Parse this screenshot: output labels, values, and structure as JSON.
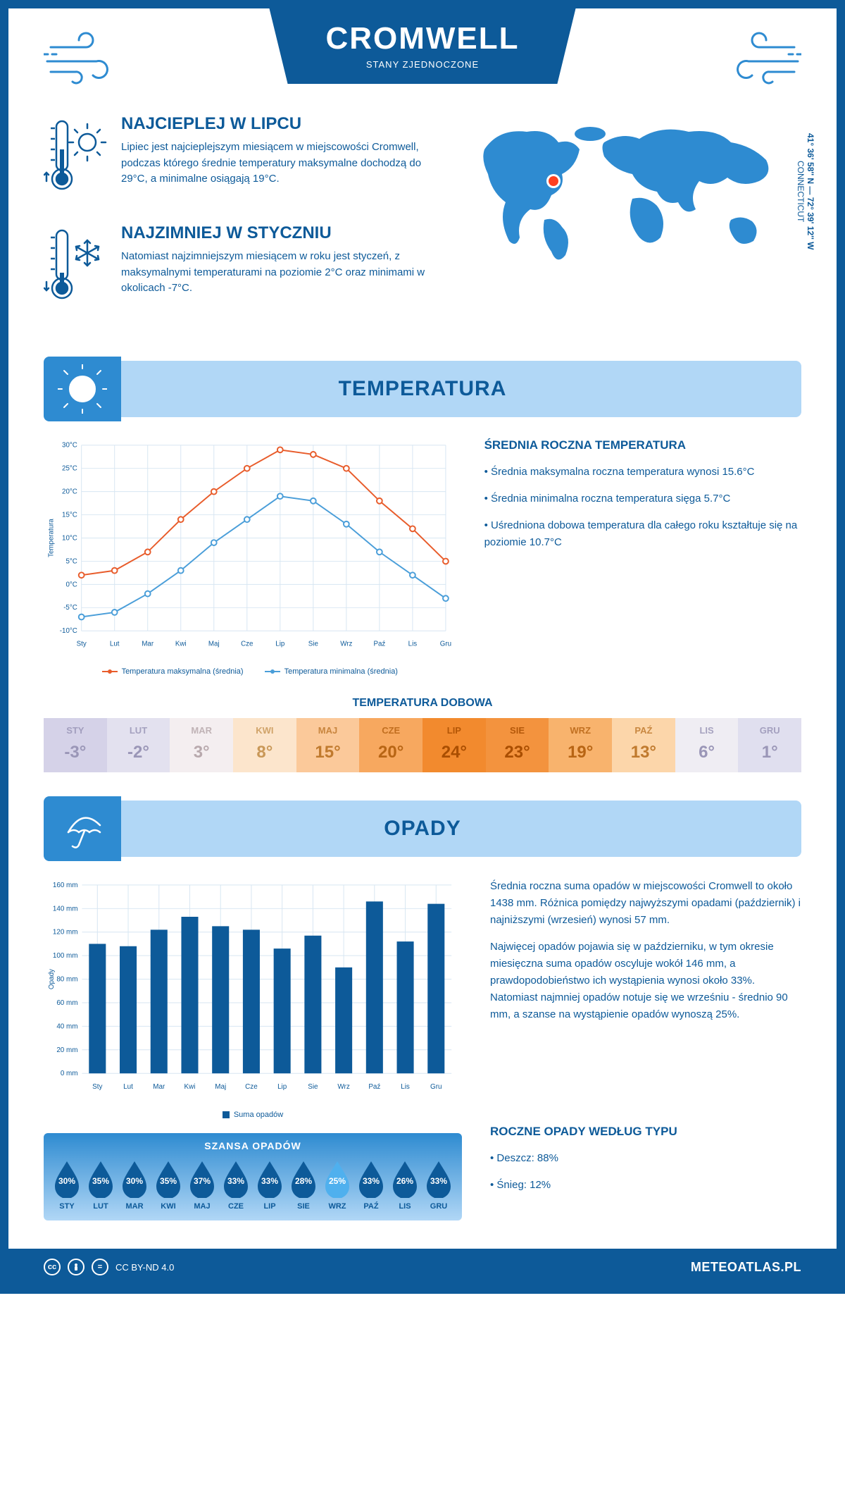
{
  "header": {
    "city": "CROMWELL",
    "country": "STANY ZJEDNOCZONE"
  },
  "coords": {
    "lat": "41° 36' 58'' N",
    "lon": "72° 39' 12'' W",
    "region": "CONNECTICUT"
  },
  "colors": {
    "primary": "#0d5a99",
    "light_blue": "#b1d7f6",
    "mid_blue": "#2e8bd1",
    "orange_line": "#e85c2b",
    "blue_line": "#4a9ed9",
    "grid": "#d7e6f2"
  },
  "warm": {
    "title": "NAJCIEPLEJ W LIPCU",
    "text": "Lipiec jest najcieplejszym miesiącem w miejscowości Cromwell, podczas którego średnie temperatury maksymalne dochodzą do 29°C, a minimalne osiągają 19°C."
  },
  "cold": {
    "title": "NAJZIMNIEJ W STYCZNIU",
    "text": "Natomiast najzimniejszym miesiącem w roku jest styczeń, z maksymalnymi temperaturami na poziomie 2°C oraz minimami w okolicach -7°C."
  },
  "temp_section": {
    "title": "TEMPERATURA",
    "summary_title": "ŚREDNIA ROCZNA TEMPERATURA",
    "bullets": [
      "• Średnia maksymalna roczna temperatura wynosi 15.6°C",
      "• Średnia minimalna roczna temperatura sięga 5.7°C",
      "• Uśredniona dobowa temperatura dla całego roku kształtuje się na poziomie 10.7°C"
    ],
    "chart": {
      "type": "line",
      "months": [
        "Sty",
        "Lut",
        "Mar",
        "Kwi",
        "Maj",
        "Cze",
        "Lip",
        "Sie",
        "Wrz",
        "Paź",
        "Lis",
        "Gru"
      ],
      "ylim": [
        -10,
        30
      ],
      "yticks": [
        "-10°C",
        "-5°C",
        "0°C",
        "5°C",
        "10°C",
        "15°C",
        "20°C",
        "25°C",
        "30°C"
      ],
      "ylabel": "Temperatura",
      "max_series": [
        2,
        3,
        7,
        14,
        20,
        25,
        29,
        28,
        25,
        18,
        12,
        5
      ],
      "min_series": [
        -7,
        -6,
        -2,
        3,
        9,
        14,
        19,
        18,
        13,
        7,
        2,
        -3
      ],
      "max_color": "#e85c2b",
      "min_color": "#4a9ed9",
      "max_label": "Temperatura maksymalna (średnia)",
      "min_label": "Temperatura minimalna (średnia)",
      "grid_color": "#d7e6f2",
      "line_width": 2,
      "marker": "circle",
      "marker_size": 4
    },
    "daily_title": "TEMPERATURA DOBOWA",
    "daily": {
      "months": [
        "STY",
        "LUT",
        "MAR",
        "KWI",
        "MAJ",
        "CZE",
        "LIP",
        "SIE",
        "WRZ",
        "PAŹ",
        "LIS",
        "GRU"
      ],
      "values": [
        "-3°",
        "-2°",
        "3°",
        "8°",
        "15°",
        "20°",
        "24°",
        "23°",
        "19°",
        "13°",
        "6°",
        "1°"
      ],
      "bg_colors": [
        "#d5d2e8",
        "#e3e1ef",
        "#f4eef0",
        "#fce5cc",
        "#fbc99a",
        "#f7a85f",
        "#f28a2e",
        "#f3933e",
        "#f8b36d",
        "#fcd6aa",
        "#efedf3",
        "#e0dfef"
      ],
      "text_colors": [
        "#9a96b7",
        "#9a96b7",
        "#b8a9ad",
        "#c99858",
        "#c07a2e",
        "#b86514",
        "#aa4e00",
        "#aa4e00",
        "#b86514",
        "#c07a2e",
        "#9a96b7",
        "#9a96b7"
      ]
    }
  },
  "precip_section": {
    "title": "OPADY",
    "text1": "Średnia roczna suma opadów w miejscowości Cromwell to około 1438 mm. Różnica pomiędzy najwyższymi opadami (październik) i najniższymi (wrzesień) wynosi 57 mm.",
    "text2": "Najwięcej opadów pojawia się w październiku, w tym okresie miesięczna suma opadów oscyluje wokół 146 mm, a prawdopodobieństwo ich wystąpienia wynosi około 33%. Natomiast najmniej opadów notuje się we wrześniu - średnio 90 mm, a szanse na wystąpienie opadów wynoszą 25%.",
    "chart": {
      "type": "bar",
      "months": [
        "Sty",
        "Lut",
        "Mar",
        "Kwi",
        "Maj",
        "Cze",
        "Lip",
        "Sie",
        "Wrz",
        "Paź",
        "Lis",
        "Gru"
      ],
      "ylim": [
        0,
        160
      ],
      "yticks": [
        "0 mm",
        "20 mm",
        "40 mm",
        "60 mm",
        "80 mm",
        "100 mm",
        "120 mm",
        "140 mm",
        "160 mm"
      ],
      "ylabel": "Opady",
      "values": [
        110,
        108,
        122,
        133,
        125,
        122,
        106,
        117,
        90,
        146,
        112,
        144
      ],
      "bar_color": "#0d5a99",
      "grid_color": "#d7e6f2",
      "legend_label": "Suma opadów",
      "bar_width": 0.55
    },
    "chance_title": "SZANSA OPADÓW",
    "chance": {
      "months": [
        "STY",
        "LUT",
        "MAR",
        "KWI",
        "MAJ",
        "CZE",
        "LIP",
        "SIE",
        "WRZ",
        "PAŹ",
        "LIS",
        "GRU"
      ],
      "values": [
        "30%",
        "35%",
        "30%",
        "35%",
        "37%",
        "33%",
        "33%",
        "28%",
        "25%",
        "33%",
        "26%",
        "33%"
      ],
      "highlight_index": 8,
      "drop_color": "#0d5a99",
      "drop_highlight": "#4fb0ee"
    },
    "type_title": "ROCZNE OPADY WEDŁUG TYPU",
    "type_bullets": [
      "• Deszcz: 88%",
      "• Śnieg: 12%"
    ]
  },
  "footer": {
    "license": "CC BY-ND 4.0",
    "site": "METEOATLAS.PL"
  }
}
